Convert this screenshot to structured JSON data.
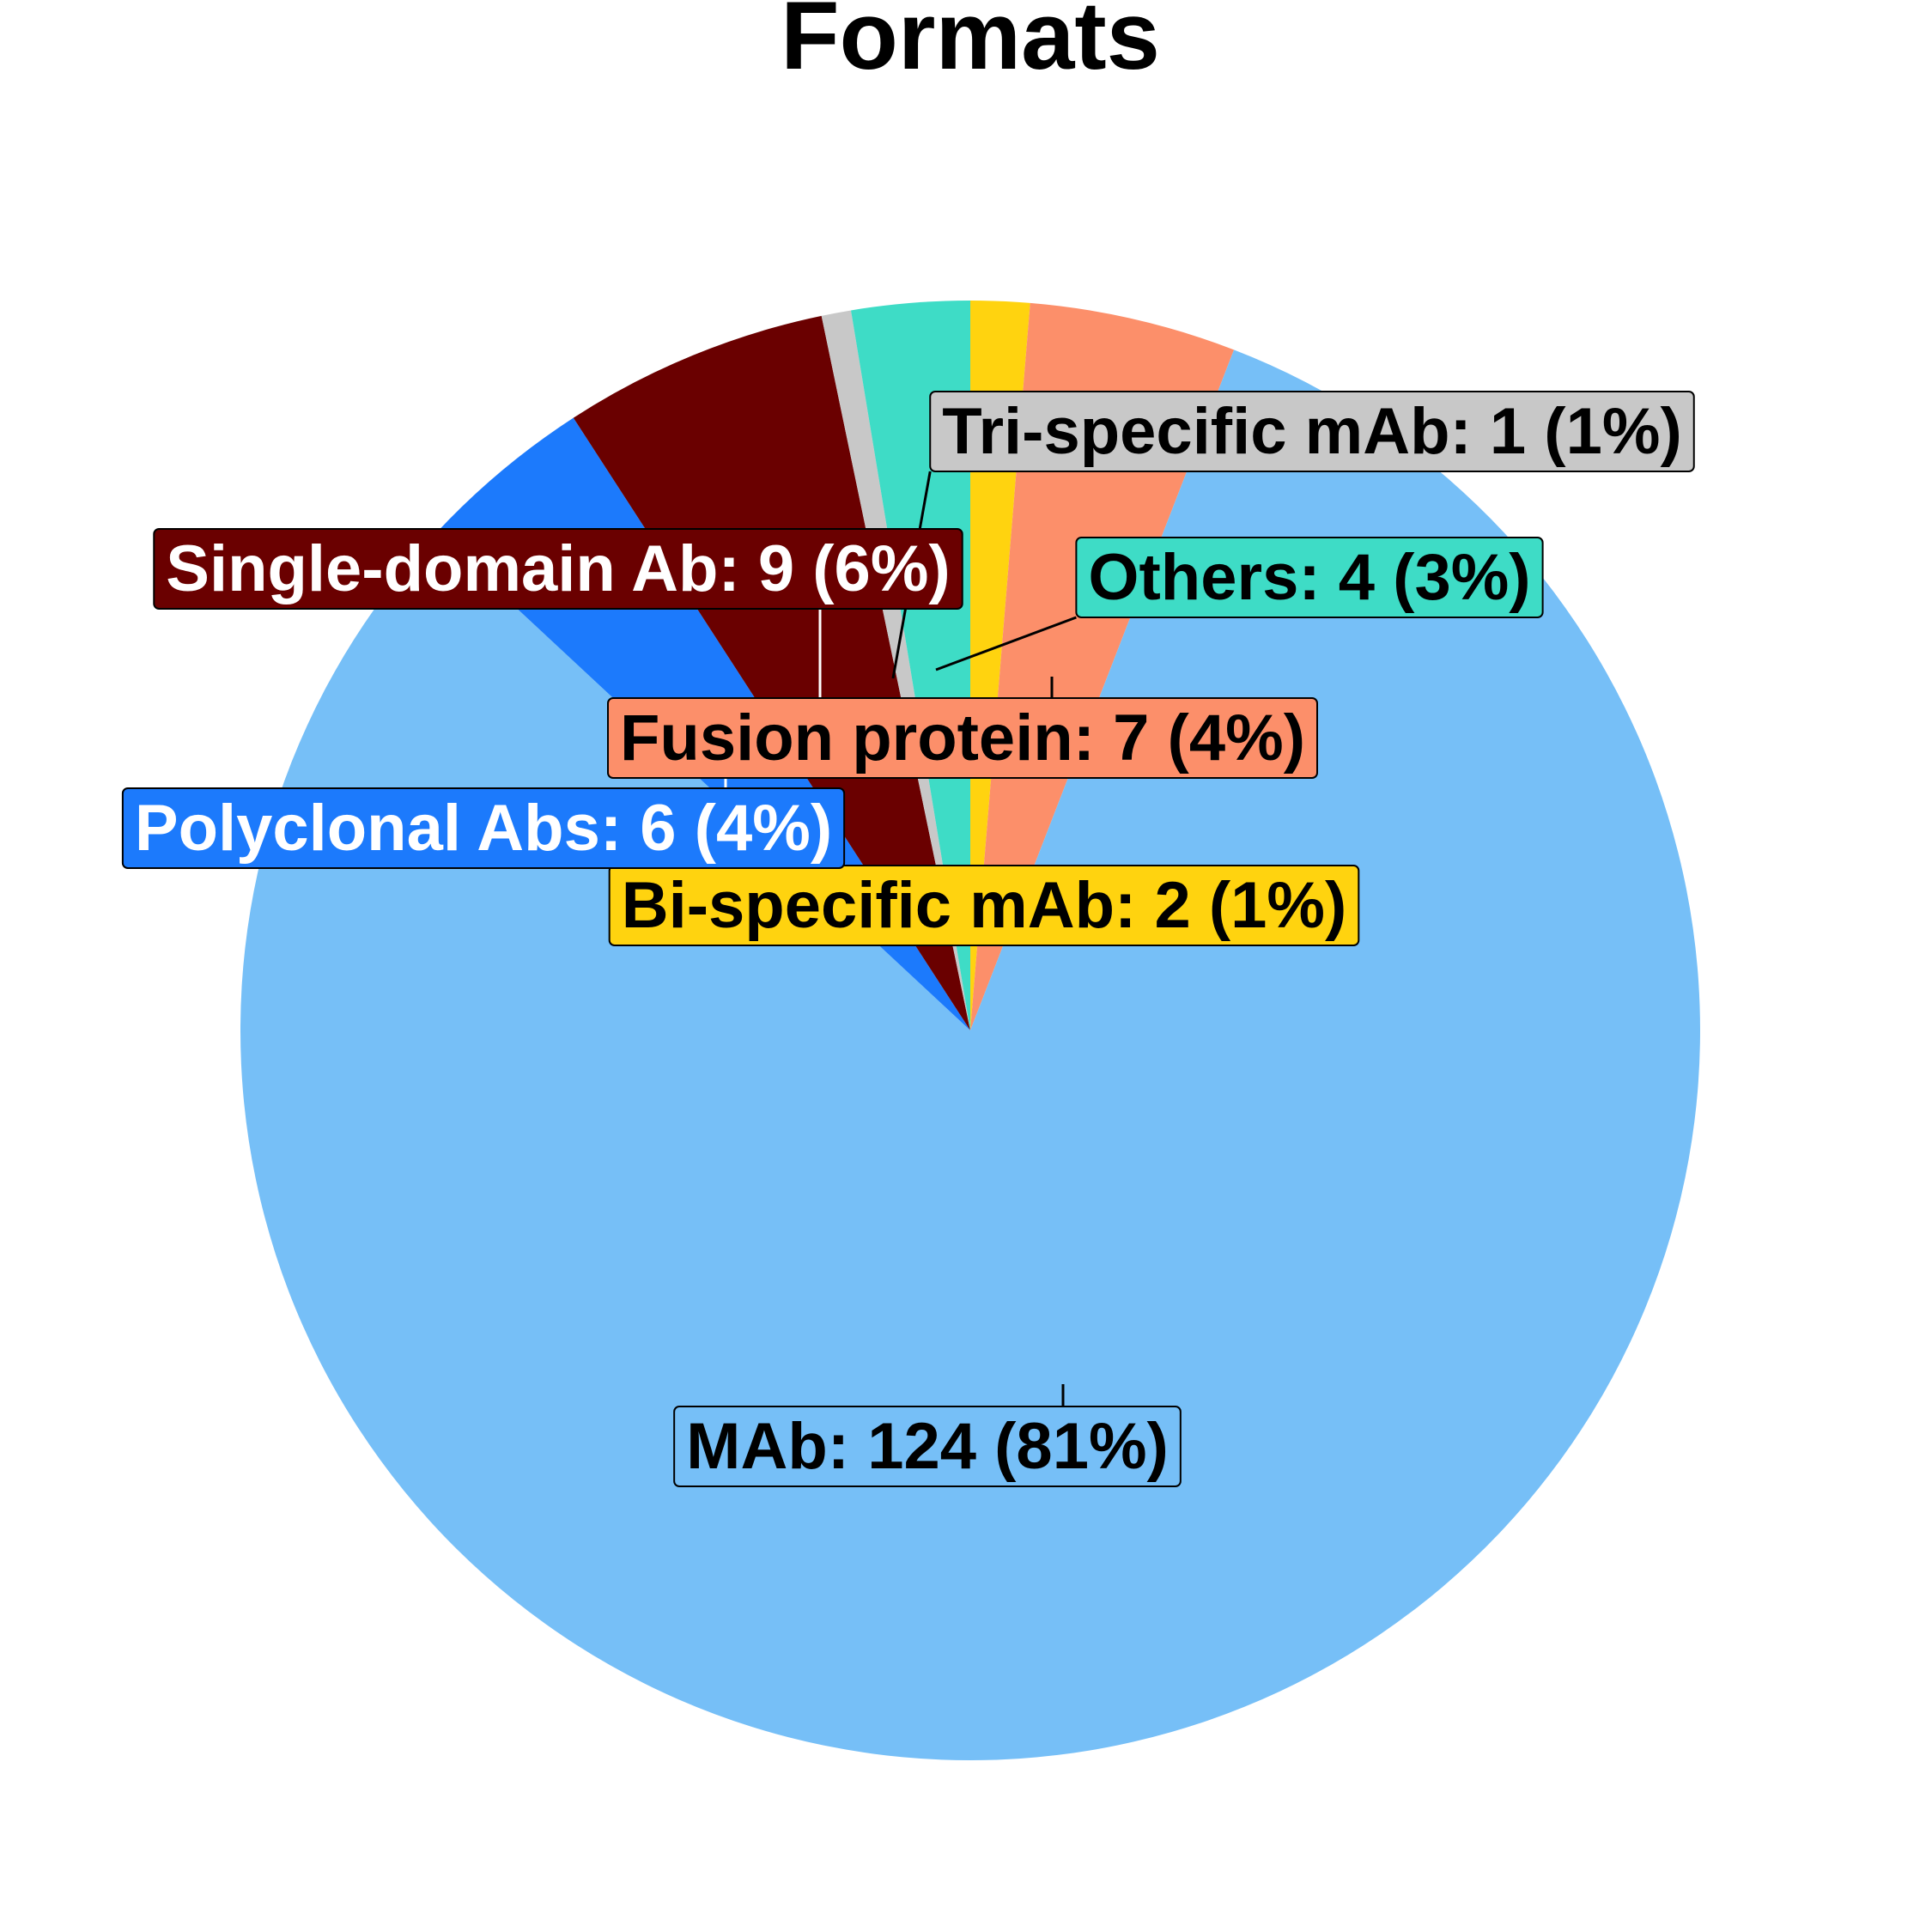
{
  "chart_data": {
    "type": "pie",
    "title": "Formats",
    "start": "top",
    "direction": "clockwise",
    "slices": [
      {
        "label": "Bi-specific mAb",
        "value": 2,
        "percent": "1%",
        "display": "Bi-specific mAb: 2 (1%)",
        "color": "#FFD30F",
        "text_color": "#000000"
      },
      {
        "label": "Fusion protein",
        "value": 7,
        "percent": "4%",
        "display": "Fusion protein: 7 (4%)",
        "color": "#FC8F6A",
        "text_color": "#000000"
      },
      {
        "label": "MAb",
        "value": 124,
        "percent": "81%",
        "display": "MAb: 124 (81%)",
        "color": "#76BFF7",
        "text_color": "#000000"
      },
      {
        "label": "Polyclonal Abs",
        "value": 6,
        "percent": "4%",
        "display": "Polyclonal Abs: 6 (4%)",
        "color": "#1C7AFC",
        "text_color": "#FFFFFF"
      },
      {
        "label": "Single-domain Ab",
        "value": 9,
        "percent": "6%",
        "display": "Single-domain Ab: 9 (6%)",
        "color": "#6A0000",
        "text_color": "#FFFFFF"
      },
      {
        "label": "Tri-specific mAb",
        "value": 1,
        "percent": "1%",
        "display": "Tri-specific mAb: 1 (1%)",
        "color": "#C8C8C8",
        "text_color": "#000000"
      },
      {
        "label": "Others",
        "value": 4,
        "percent": "3%",
        "display": "Others: 4 (3%)",
        "color": "#3EDCC6",
        "text_color": "#000000"
      }
    ]
  }
}
